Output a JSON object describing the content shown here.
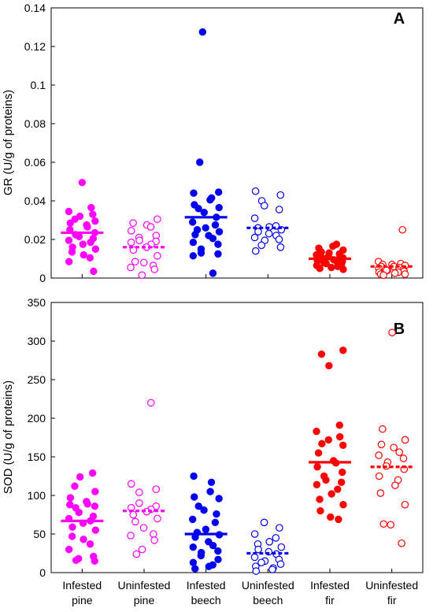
{
  "chart_data": [
    {
      "type": "scatter",
      "panel_label": "A",
      "ylabel": "GR (U/g of proteins)",
      "ylim": [
        0,
        0.14
      ],
      "yticks": [
        0,
        0.02,
        0.04,
        0.06,
        0.08,
        0.1,
        0.12,
        0.14
      ],
      "ytick_labels": [
        "0",
        "0.02",
        "0.04",
        "0.06",
        "0.08",
        "0.1",
        "0.12",
        "0.14"
      ],
      "grid": false,
      "categories": [
        "Infested pine",
        "Uninfested pine",
        "Infested beech",
        "Uninfested beech",
        "Infested fir",
        "Uninfested fir"
      ],
      "series": [
        {
          "category_index": 0,
          "color": "#ff00ff",
          "marker": "filled",
          "mean": 0.0235,
          "mean_line": "solid",
          "values": [
            0.0495,
            0.0365,
            0.0345,
            0.033,
            0.032,
            0.0305,
            0.0295,
            0.0285,
            0.0275,
            0.0265,
            0.025,
            0.0235,
            0.0225,
            0.0215,
            0.0205,
            0.0195,
            0.0185,
            0.0175,
            0.016,
            0.015,
            0.0135,
            0.012,
            0.0105,
            0.0085,
            0.0035
          ]
        },
        {
          "category_index": 1,
          "color": "#ff00ff",
          "marker": "open",
          "mean": 0.016,
          "mean_line": "dashed",
          "values": [
            0.0305,
            0.0285,
            0.0275,
            0.0265,
            0.0245,
            0.022,
            0.021,
            0.0195,
            0.019,
            0.0185,
            0.0175,
            0.016,
            0.0145,
            0.0115,
            0.0085,
            0.008,
            0.0065,
            0.0055,
            0.0045,
            0.0015
          ]
        },
        {
          "category_index": 2,
          "color": "#0000ee",
          "marker": "filled",
          "mean": 0.0315,
          "mean_line": "solid",
          "values": [
            0.1275,
            0.06,
            0.0445,
            0.044,
            0.0415,
            0.0405,
            0.038,
            0.0365,
            0.036,
            0.034,
            0.0315,
            0.029,
            0.0275,
            0.026,
            0.025,
            0.024,
            0.0225,
            0.022,
            0.0205,
            0.0185,
            0.0175,
            0.015,
            0.013,
            0.0125,
            0.0115,
            0.0025
          ]
        },
        {
          "category_index": 3,
          "color": "#0000ee",
          "marker": "open",
          "mean": 0.026,
          "mean_line": "dashed",
          "values": [
            0.045,
            0.043,
            0.04,
            0.0375,
            0.0355,
            0.031,
            0.027,
            0.0265,
            0.026,
            0.025,
            0.024,
            0.023,
            0.022,
            0.021,
            0.02,
            0.0195,
            0.017,
            0.016,
            0.014
          ]
        },
        {
          "category_index": 4,
          "color": "#ff0000",
          "marker": "filled",
          "mean": 0.01,
          "mean_line": "solid",
          "values": [
            0.0175,
            0.0165,
            0.0155,
            0.0145,
            0.0135,
            0.013,
            0.0125,
            0.012,
            0.0115,
            0.011,
            0.0105,
            0.0105,
            0.01,
            0.0095,
            0.009,
            0.009,
            0.0085,
            0.008,
            0.0075,
            0.007,
            0.0065,
            0.006,
            0.0055,
            0.005,
            0.0045
          ]
        },
        {
          "category_index": 5,
          "color": "#ff0000",
          "marker": "open",
          "mean": 0.006,
          "mean_line": "dashed",
          "values": [
            0.025,
            0.0085,
            0.0075,
            0.007,
            0.007,
            0.0065,
            0.006,
            0.006,
            0.0055,
            0.005,
            0.0045,
            0.004,
            0.004,
            0.0035,
            0.003,
            0.003,
            0.0025,
            0.002,
            0.002,
            0.0015
          ]
        }
      ]
    },
    {
      "type": "scatter",
      "panel_label": "B",
      "ylabel": "SOD (U/g of proteins)",
      "ylim": [
        0,
        350
      ],
      "yticks": [
        0,
        50,
        100,
        150,
        200,
        250,
        300,
        350
      ],
      "ytick_labels": [
        "0",
        "50",
        "100",
        "150",
        "200",
        "250",
        "300",
        "350"
      ],
      "grid": false,
      "categories": [
        "Infested pine",
        "Uninfested pine",
        "Infested beech",
        "Uninfested beech",
        "Infested fir",
        "Uninfested fir"
      ],
      "category_labels": [
        {
          "line1": "Infested",
          "line2": "pine"
        },
        {
          "line1": "Uninfested",
          "line2": "pine"
        },
        {
          "line1": "Infested",
          "line2": "beech"
        },
        {
          "line1": "Uninfested",
          "line2": "beech"
        },
        {
          "line1": "Infested",
          "line2": "fir"
        },
        {
          "line1": "Uninfested",
          "line2": "fir"
        }
      ],
      "series": [
        {
          "category_index": 0,
          "color": "#ff00ff",
          "marker": "filled",
          "mean": 67,
          "mean_line": "solid",
          "values": [
            129,
            124,
            112,
            105,
            97,
            92,
            89,
            88,
            86,
            84,
            78,
            73,
            70,
            67,
            64,
            59,
            55,
            47,
            43,
            37,
            30,
            21,
            18,
            16,
            15
          ]
        },
        {
          "category_index": 1,
          "color": "#ff00ff",
          "marker": "open",
          "mean": 80,
          "mean_line": "dashed",
          "values": [
            220,
            115,
            108,
            104,
            90,
            86,
            84,
            82,
            79,
            75,
            70,
            66,
            58,
            50,
            48,
            42,
            30,
            24
          ]
        },
        {
          "category_index": 2,
          "color": "#0000ee",
          "marker": "filled",
          "mean": 50,
          "mean_line": "solid",
          "values": [
            125,
            117,
            105,
            98,
            96,
            86,
            81,
            76,
            69,
            65,
            56,
            52,
            49,
            46,
            40,
            35,
            33,
            28,
            26,
            22,
            17,
            13,
            10,
            8,
            5
          ]
        },
        {
          "category_index": 3,
          "color": "#0000ee",
          "marker": "open",
          "mean": 25,
          "mean_line": "dashed",
          "values": [
            65,
            58,
            50,
            45,
            40,
            37,
            33,
            30,
            27,
            24,
            20,
            17,
            15,
            13,
            11,
            8,
            6,
            4,
            2
          ]
        },
        {
          "category_index": 4,
          "color": "#ff0000",
          "marker": "filled",
          "mean": 143,
          "mean_line": "solid",
          "values": [
            288,
            283,
            268,
            191,
            183,
            176,
            172,
            167,
            165,
            155,
            145,
            142,
            137,
            130,
            125,
            120,
            117,
            114,
            108,
            102,
            95,
            88,
            80,
            72,
            69
          ]
        },
        {
          "category_index": 5,
          "color": "#ff0000",
          "marker": "open",
          "mean": 137,
          "mean_line": "dashed",
          "values": [
            311,
            186,
            172,
            166,
            162,
            156,
            152,
            148,
            143,
            138,
            134,
            125,
            120,
            113,
            103,
            88,
            63,
            62,
            38
          ]
        }
      ]
    }
  ]
}
